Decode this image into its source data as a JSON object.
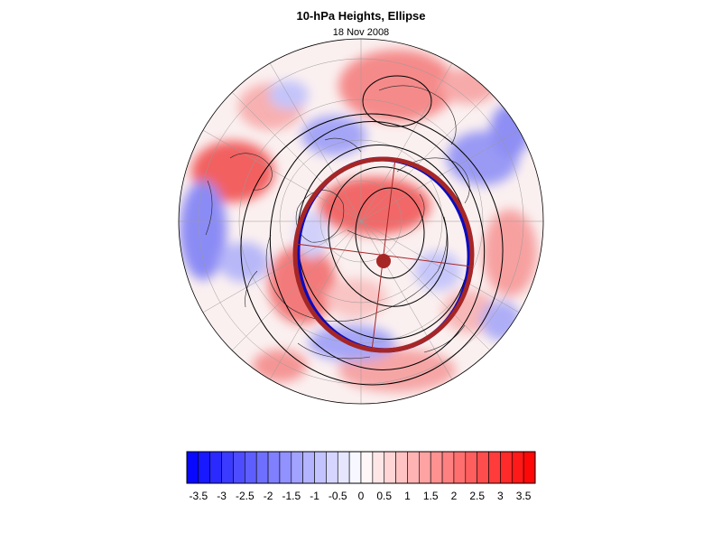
{
  "title": "10-hPa Heights, Ellipse",
  "subtitle": "18 Nov 2008",
  "colors": {
    "negative_extreme": "#0000ff",
    "positive_extreme": "#ff0000",
    "vortex_edge": "#0b0bbf",
    "ellipse": "#a62626",
    "contour": "#000000"
  },
  "colorbar": {
    "min": -3.75,
    "max": 3.75,
    "step": 0.25,
    "tick_labels": [
      "-3.5",
      "-3",
      "-2.5",
      "-2",
      "-1.5",
      "-1",
      "-0.5",
      "0",
      "0.5",
      "1",
      "1.5",
      "2",
      "2.5",
      "3",
      "3.5"
    ],
    "tick_values": [
      -3.5,
      -3,
      -2.5,
      -2,
      -1.5,
      -1,
      -0.5,
      0,
      0.5,
      1,
      1.5,
      2,
      2.5,
      3,
      3.5
    ]
  }
}
